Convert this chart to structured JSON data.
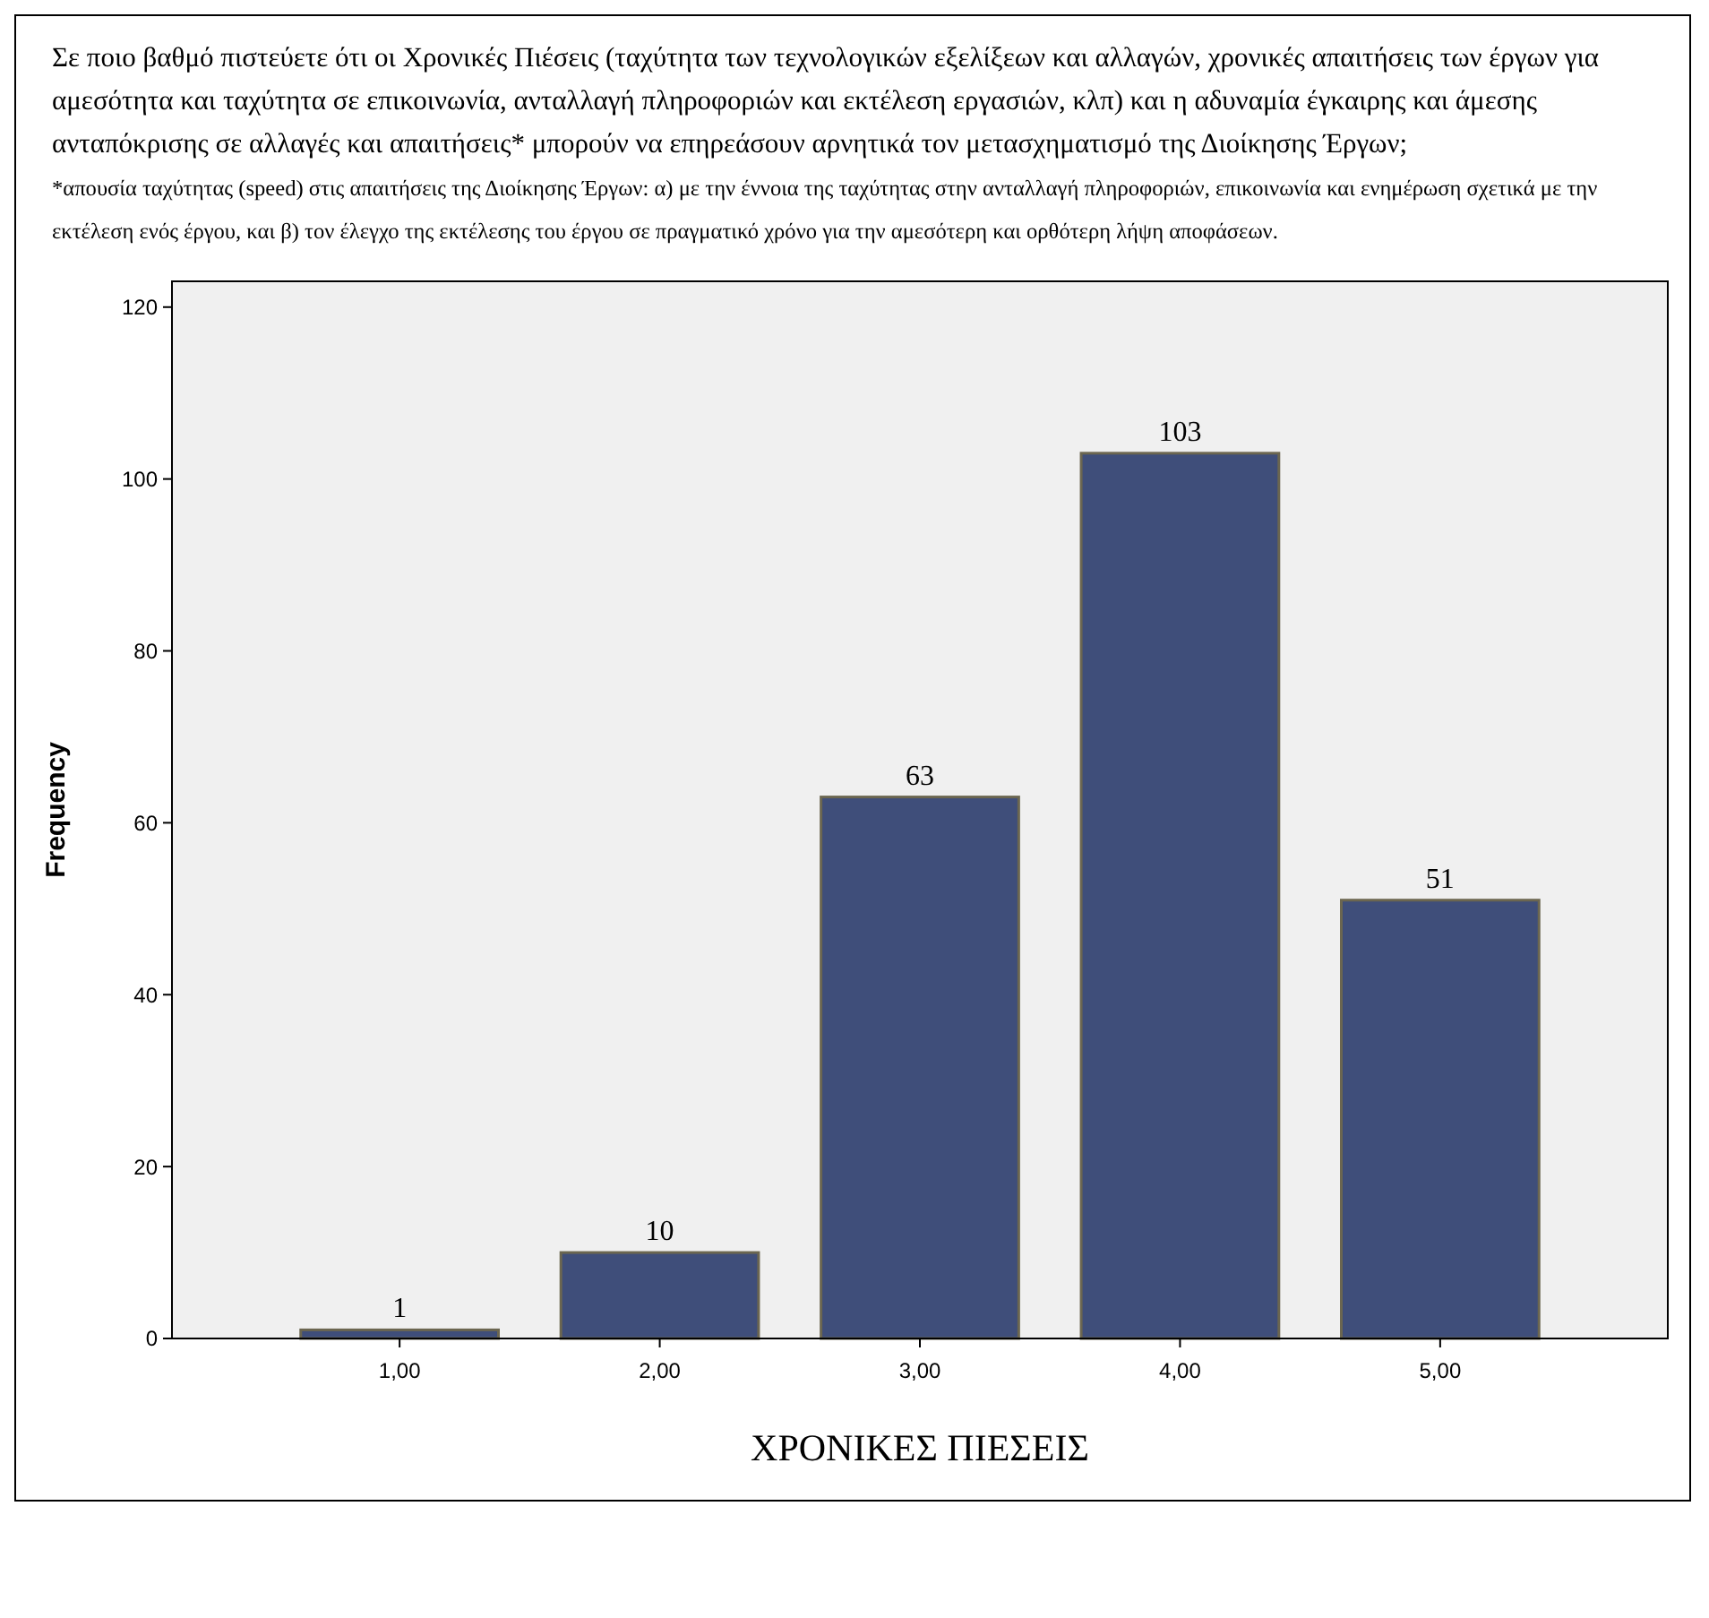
{
  "chart_data": {
    "type": "bar",
    "title": "Σε ποιο βαθμό πιστεύετε ότι οι Χρονικές Πιέσεις (ταχύτητα των τεχνολογικών εξελίξεων και αλλαγών, χρονικές απαιτήσεις των έργων για αμεσότητα και ταχύτητα σε επικοινωνία, ανταλλαγή πληροφοριών και εκτέλεση εργασιών, κλπ) και η αδυναμία έγκαιρης και άμεσης ανταπόκρισης σε αλλαγές και απαιτήσεις* μπορούν να επηρεάσουν αρνητικά τον μετασχηματισμό της Διοίκησης Έργων;",
    "subtitle": "*απουσία ταχύτητας (speed) στις απαιτήσεις της Διοίκησης Έργων: α) με την έννοια της ταχύτητας στην ανταλλαγή πληροφοριών, επικοινωνία και ενημέρωση σχετικά με την εκτέλεση ενός έργου, και β) τον έλεγχο της εκτέλεσης του έργου σε πραγματικό χρόνο για την αμεσότερη και ορθότερη λήψη αποφάσεων.",
    "xlabel": "ΧΡΟΝΙΚΕΣ ΠΙΕΣΕΙΣ",
    "ylabel": "Frequency",
    "categories": [
      "1,00",
      "2,00",
      "3,00",
      "4,00",
      "5,00"
    ],
    "values": [
      1,
      10,
      63,
      103,
      51
    ],
    "color": "#3f4e7a",
    "ylim": [
      0,
      123
    ],
    "yticks": [
      0,
      20,
      40,
      60,
      80,
      100,
      120
    ],
    "data_labels": true,
    "grid": false
  }
}
